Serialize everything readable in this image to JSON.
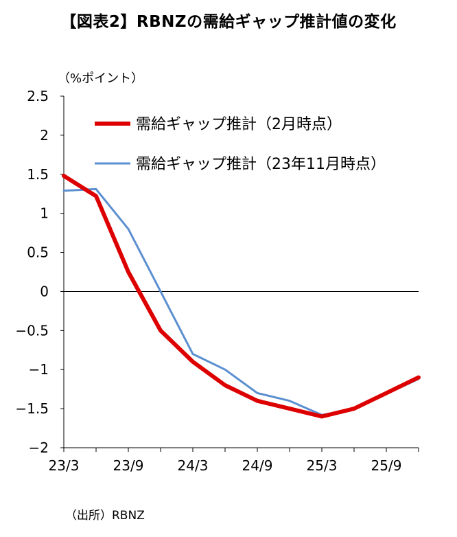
{
  "chart_data": {
    "type": "line",
    "title": "【図表2】RBNZの需給ギャップ推計値の変化",
    "ylabel": "（%ポイント）",
    "xlabel": "",
    "source": "（出所）RBNZ",
    "ylim": [
      -2,
      2.5
    ],
    "yticks": [
      2.5,
      2,
      1.5,
      1,
      0.5,
      0,
      -0.5,
      -1,
      -1.5,
      -2
    ],
    "ytick_labels": [
      "2.5",
      "2",
      "1.5",
      "1",
      "0.5",
      "0",
      "−0.5",
      "−1",
      "−1.5",
      "−2"
    ],
    "x": [
      "23/3",
      "23/6",
      "23/9",
      "23/12",
      "24/3",
      "24/6",
      "24/9",
      "24/12",
      "25/3",
      "25/6",
      "25/9",
      "25/12"
    ],
    "xtick_labels": [
      "23/3",
      "23/9",
      "24/3",
      "24/9",
      "25/3",
      "25/9"
    ],
    "legend_position": "top-right",
    "series": [
      {
        "name": "需給ギャップ推計（2月時点）",
        "color": "#dd0000",
        "values": [
          1.48,
          1.22,
          0.25,
          -0.5,
          -0.9,
          -1.2,
          -1.4,
          -1.5,
          -1.6,
          -1.5,
          -1.3,
          -1.1
        ]
      },
      {
        "name": "需給ギャップ推計（23年11月時点）",
        "color": "#5b8fd0",
        "values": [
          1.29,
          1.31,
          0.8,
          0.0,
          -0.8,
          -1.0,
          -1.3,
          -1.4,
          -1.58,
          -1.51,
          -1.31,
          -1.12
        ]
      }
    ]
  }
}
